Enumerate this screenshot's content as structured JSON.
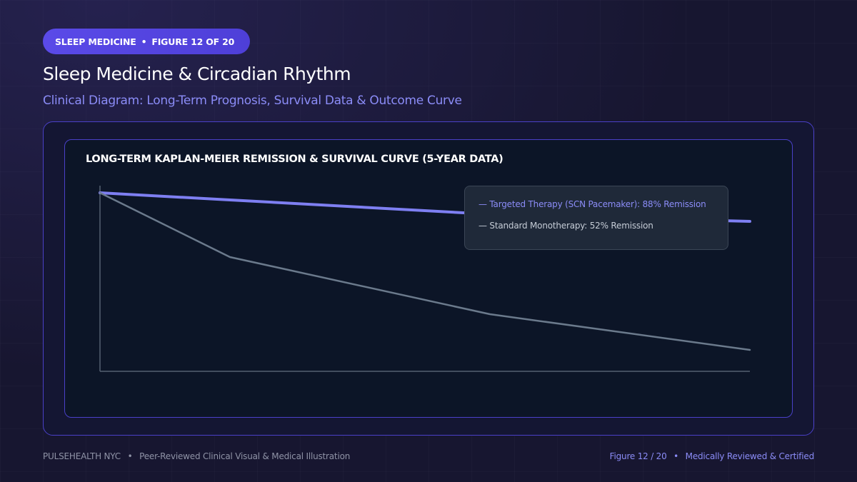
{
  "badge": {
    "section": "SLEEP MEDICINE",
    "separator": "•",
    "figure": "FIGURE 12 OF 20"
  },
  "header": {
    "title": "Sleep Medicine & Circadian Rhythm",
    "subtitle": "Clinical Diagram: Long-Term Prognosis, Survival Data & Outcome Curve"
  },
  "chart_data": {
    "type": "line",
    "title": "LONG-TERM KAPLAN-MEIER REMISSION & SURVIVAL CURVE (5-YEAR DATA)",
    "xlabel": "",
    "ylabel": "",
    "x": [
      0,
      1,
      3,
      5
    ],
    "xlim": [
      0,
      5
    ],
    "ylim": [
      0,
      100
    ],
    "grid": false,
    "legend_position": "top-right",
    "series": [
      {
        "name": "Targeted Therapy (SCN Pacemaker): 88% Remission",
        "label": "— Targeted Therapy (SCN Pacemaker): 88% Remission",
        "values": [
          100,
          96,
          88,
          84
        ],
        "color": "#7e7ff2"
      },
      {
        "name": "Standard Monotherapy: 52% Remission",
        "label": "— Standard Monotherapy: 52% Remission",
        "values": [
          100,
          64,
          32,
          12
        ],
        "color": "#6b7a8c"
      }
    ]
  },
  "footer": {
    "brand": "PULSEHEALTH NYC",
    "separator": "•",
    "tagline": "Peer-Reviewed Clinical Visual & Medical Illustration",
    "figure_ref": "Figure 12 / 20",
    "certification": "Medically Reviewed & Certified"
  },
  "colors": {
    "background": "#171630",
    "accent": "#5a4ae8",
    "accent_text": "#8b8cf7",
    "card_border": "#4a40c8",
    "chart_background": "#0c1527",
    "legend_background": "#1f2939"
  }
}
